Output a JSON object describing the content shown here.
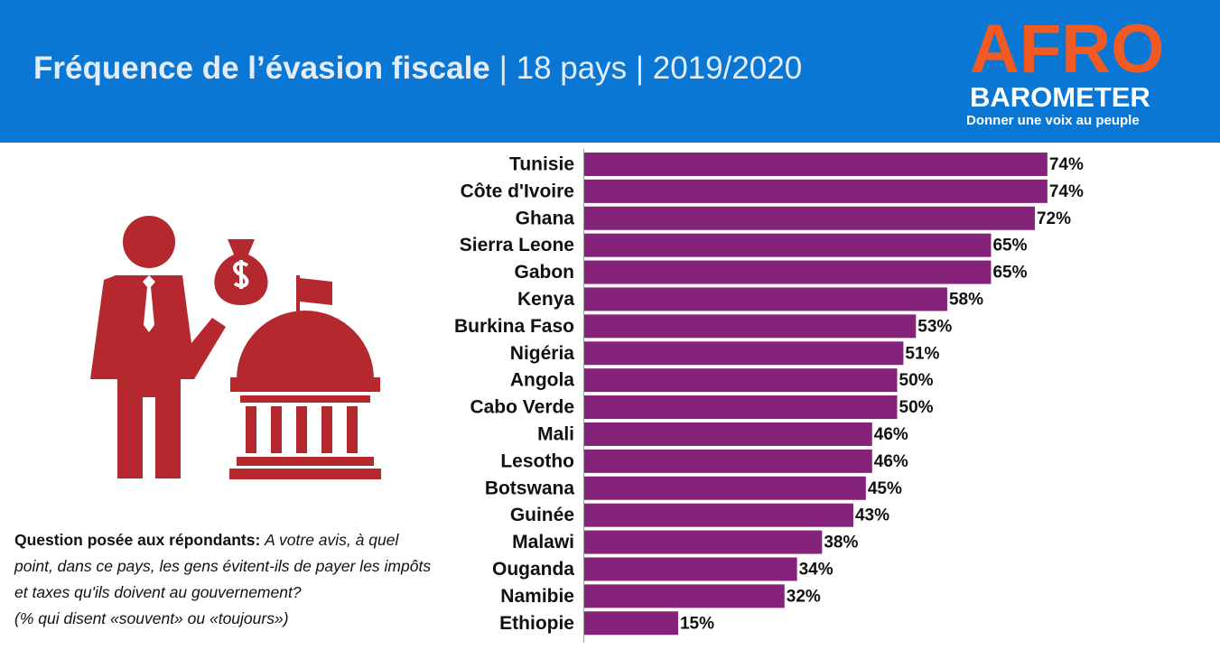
{
  "header": {
    "title": "Fréquence de l’évasion fiscale",
    "subtitle": "| 18 pays | 2019/2020"
  },
  "logo": {
    "name_top": "AFRO",
    "name_bottom": "BAROMETER",
    "tagline": "Donner une voix au peuple"
  },
  "note": {
    "label": "Question posée aux répondants:",
    "question": "A votre avis, à quel point, dans ce pays, les gens évitent-ils de payer les impôts et taxes qu'ils doivent au gouvernement?",
    "measure": "(% qui disent «souvent» ou «toujours»)"
  },
  "chart_data": {
    "type": "hbar",
    "color": "#85237a",
    "categories": [
      "Tunisie",
      "Côte d'Ivoire",
      "Ghana",
      "Sierra Leone",
      "Gabon",
      "Kenya",
      "Burkina Faso",
      "Nigéria",
      "Angola",
      "Cabo Verde",
      "Mali",
      "Lesotho",
      "Botswana",
      "Guinée",
      "Malawi",
      "Ouganda",
      "Namibie",
      "Ethiopie"
    ],
    "values": [
      74,
      74,
      72,
      65,
      65,
      58,
      53,
      51,
      50,
      50,
      46,
      46,
      45,
      43,
      38,
      34,
      32,
      15
    ],
    "value_labels": [
      "74%",
      "74%",
      "72%",
      "65%",
      "65%",
      "58%",
      "53%",
      "51%",
      "50%",
      "50%",
      "46%",
      "46%",
      "45%",
      "43%",
      "38%",
      "34%",
      "32%",
      "15%"
    ],
    "xlim": [
      0,
      100
    ]
  }
}
